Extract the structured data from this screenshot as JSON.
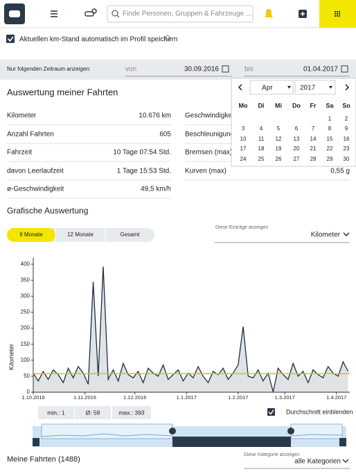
{
  "header": {
    "search_placeholder": "Finde Personen, Gruppen & Fahrzeuge ..."
  },
  "settings": {
    "auto_km_label": "Aktuellen km-Stand automatisch im Profil speichern",
    "auto_km_checked": true
  },
  "date_range": {
    "label": "Nur folgenden Zeitraum anzeigen:",
    "from_label": "von",
    "from": "30.09.2016",
    "to_label": "bis",
    "to": "01.04.2017"
  },
  "calendar": {
    "month": "Apr",
    "year": "2017",
    "weekdays": [
      "Mo",
      "Di",
      "Mi",
      "Do",
      "Fr",
      "Sa",
      "So"
    ],
    "weeks": [
      [
        null,
        null,
        null,
        null,
        null,
        1,
        2
      ],
      [
        3,
        4,
        5,
        6,
        7,
        8,
        9
      ],
      [
        10,
        11,
        12,
        13,
        14,
        15,
        16
      ],
      [
        17,
        18,
        19,
        20,
        21,
        22,
        23
      ],
      [
        24,
        25,
        26,
        27,
        28,
        29,
        30
      ]
    ]
  },
  "summary": {
    "title": "Auswertung meiner Fahrten",
    "left": [
      {
        "label": "Kilometer",
        "value": "10.676 km"
      },
      {
        "label": "Anzahl Fahrten",
        "value": "605"
      },
      {
        "label": "Fahrzeit",
        "value": "10 Tage 07:54 Std."
      },
      {
        "label": "davon Leerlaufzeit",
        "value": "1 Tage 15:53 Std."
      },
      {
        "label": "ø-Geschwindigkeit",
        "value": "49,5 km/h"
      }
    ],
    "right": [
      {
        "label": "Geschwindigkeit"
      },
      {
        "label": "Beschleunigung"
      },
      {
        "label": "Bremsen (max)"
      },
      {
        "label": "Kurven (max)",
        "value": "0,55 g"
      }
    ]
  },
  "graph": {
    "title": "Grafische Auswertung",
    "tabs": [
      "6 Monate",
      "12 Monate",
      "Gesamt"
    ],
    "active_tab": 0,
    "select_label": "Diese Einträge anzeigen",
    "select_value": "Kilometer",
    "stats": [
      "min.: 1",
      "Ø: 58",
      "max.: 393"
    ],
    "show_average_label": "Durchschnitt einblenden",
    "show_average": true
  },
  "chart_data": {
    "type": "line",
    "y_label": "Kilometer",
    "x": [
      0,
      3,
      6,
      9,
      12,
      15,
      18,
      21,
      24,
      27,
      30,
      33,
      36,
      39,
      42,
      45,
      48,
      51,
      54,
      57,
      60,
      63,
      66,
      69,
      72,
      75,
      78,
      81,
      84,
      87,
      90,
      93,
      96,
      99,
      102,
      105,
      108,
      111,
      114,
      117,
      120,
      123,
      126,
      129,
      132,
      135,
      138,
      141,
      144,
      147,
      150,
      153,
      156,
      159,
      162,
      165,
      168,
      171,
      174,
      177,
      180,
      183,
      186,
      189
    ],
    "values": [
      60,
      35,
      65,
      40,
      70,
      55,
      30,
      75,
      45,
      80,
      60,
      25,
      345,
      50,
      393,
      40,
      70,
      35,
      90,
      55,
      45,
      65,
      30,
      75,
      60,
      50,
      85,
      40,
      55,
      70,
      35,
      60,
      45,
      80,
      50,
      30,
      65,
      55,
      75,
      40,
      60,
      85,
      205,
      50,
      45,
      70,
      35,
      60,
      1,
      75,
      55,
      40,
      90,
      50,
      65,
      30,
      70,
      55,
      45,
      80,
      60,
      50,
      95,
      65
    ],
    "xlim": [
      0,
      190
    ],
    "ylim": [
      0,
      420
    ],
    "yticks": [
      0,
      50,
      100,
      150,
      200,
      250,
      300,
      350,
      400
    ],
    "xticks": [
      {
        "value": 0,
        "label": "1.10.2016"
      },
      {
        "value": 31,
        "label": "1.11.2016"
      },
      {
        "value": 61,
        "label": "1.12.2016"
      },
      {
        "value": 92,
        "label": "1.1.2017"
      },
      {
        "value": 123,
        "label": "1.2.2017"
      },
      {
        "value": 151,
        "label": "1.3.2017"
      },
      {
        "value": 182,
        "label": "1.4.2017"
      }
    ],
    "average": 58,
    "color": "#1f2d3d",
    "fill": "#dfe3e6",
    "average_color": "#d4c400"
  },
  "trips": {
    "title": "Meine Fahrten (1488)",
    "select_label": "Diese Kategorie anzeigen",
    "select_value": "alle Kategorien"
  }
}
